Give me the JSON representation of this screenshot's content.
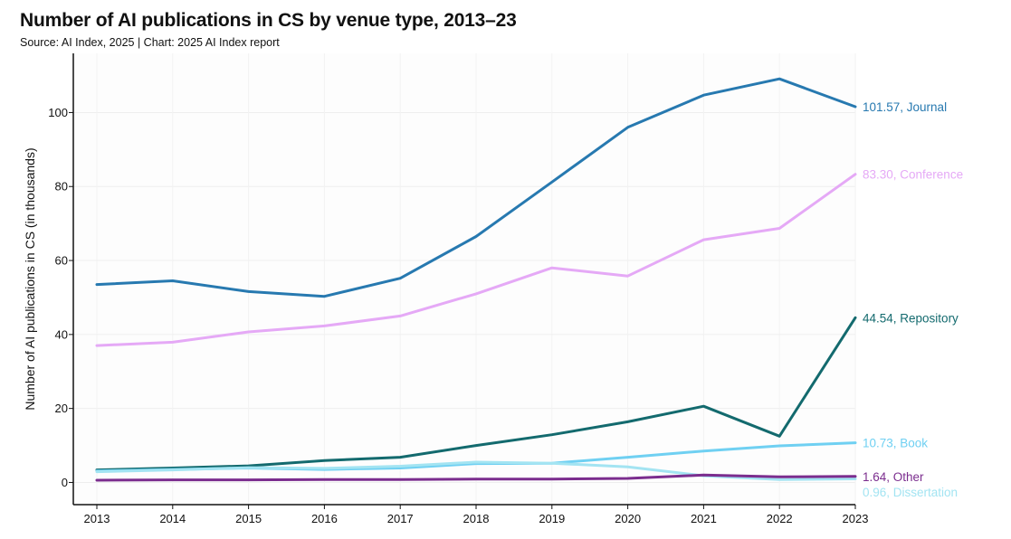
{
  "header": {
    "title": "Number of AI publications in CS by venue type, 2013–23",
    "subtitle": "Source: AI Index, 2025 | Chart: 2025 AI Index report"
  },
  "chart_data": {
    "type": "line",
    "title": "Number of AI publications in CS by venue type, 2013–23",
    "xlabel": "",
    "ylabel": "Number of AI publications in CS (in thousands)",
    "x": [
      2013,
      2014,
      2015,
      2016,
      2017,
      2018,
      2019,
      2020,
      2021,
      2022,
      2023
    ],
    "ylim": [
      -6,
      116
    ],
    "yticks": [
      0,
      20,
      40,
      60,
      80,
      100
    ],
    "grid": true,
    "legend": "end-of-line labels",
    "series": [
      {
        "name": "Journal",
        "color": "#2779b0",
        "end_label": "101.57, Journal",
        "values": [
          53.5,
          54.5,
          51.6,
          50.3,
          55.2,
          66.5,
          81.2,
          96.0,
          104.7,
          109.1,
          101.57
        ]
      },
      {
        "name": "Conference",
        "color": "#e5a9f6",
        "end_label": "83.30, Conference",
        "values": [
          37.0,
          37.9,
          40.7,
          42.3,
          45.0,
          51.0,
          58.0,
          55.8,
          65.6,
          68.7,
          83.3
        ]
      },
      {
        "name": "Repository",
        "color": "#136a6e",
        "end_label": "44.54, Repository",
        "values": [
          3.4,
          3.9,
          4.5,
          5.9,
          6.8,
          10.0,
          12.9,
          16.4,
          20.6,
          12.5,
          44.54
        ]
      },
      {
        "name": "Book",
        "color": "#6fd0f2",
        "end_label": "10.73, Book",
        "values": [
          3.1,
          3.5,
          3.9,
          3.5,
          3.9,
          5.1,
          5.2,
          6.8,
          8.5,
          9.9,
          10.73
        ]
      },
      {
        "name": "Dissertation",
        "color": "#a3e4f2",
        "end_label": "0.96, Dissertation",
        "values": [
          2.9,
          3.4,
          4.0,
          3.8,
          4.4,
          5.5,
          5.2,
          4.2,
          1.8,
          0.8,
          0.96
        ]
      },
      {
        "name": "Other",
        "color": "#7b2d8e",
        "end_label": "1.64, Other",
        "values": [
          0.6,
          0.7,
          0.7,
          0.8,
          0.8,
          0.9,
          0.9,
          1.1,
          2.0,
          1.5,
          1.64
        ]
      }
    ]
  }
}
